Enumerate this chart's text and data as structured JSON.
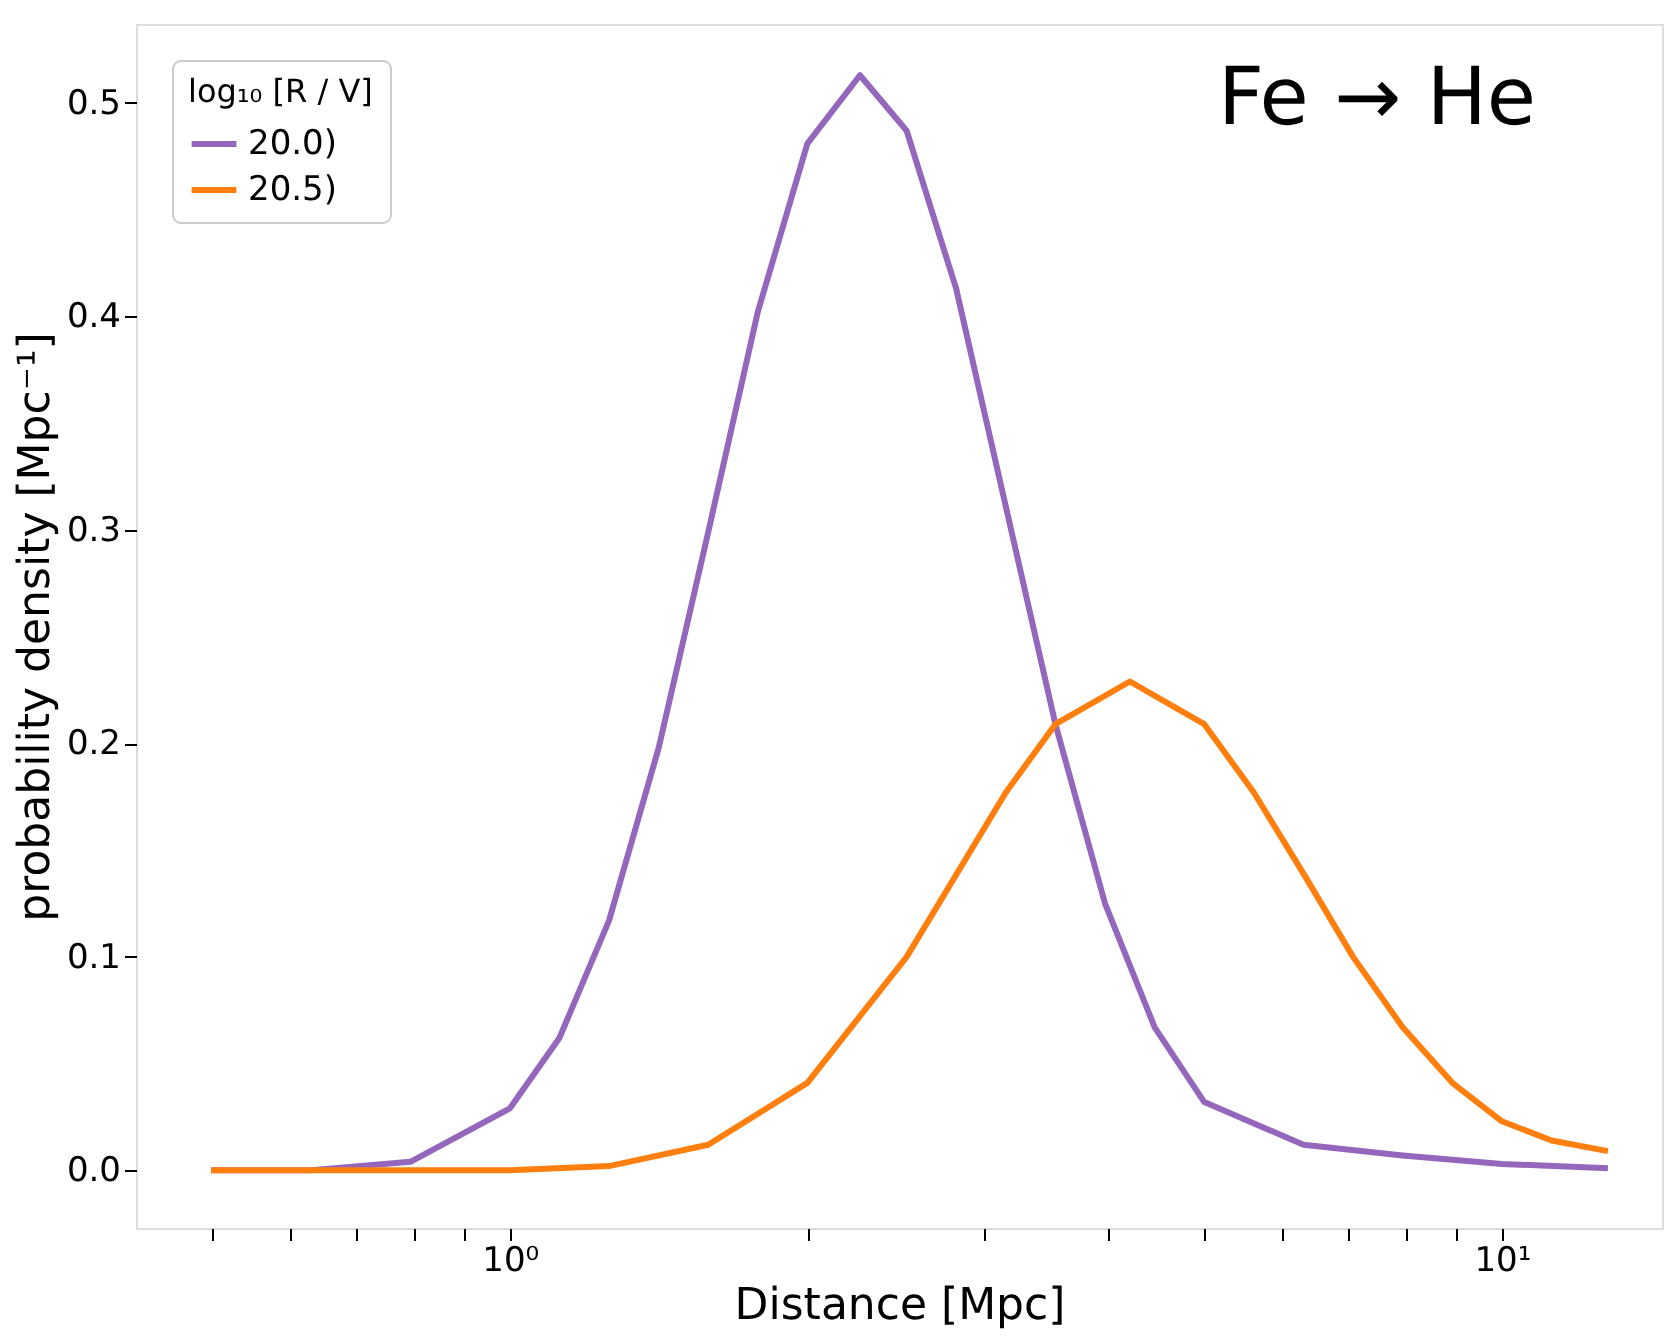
{
  "chart_data": {
    "type": "line",
    "xlabel": "Distance [Mpc]",
    "ylabel": "probability density [Mpc⁻¹]",
    "legend_title": "log₁₀ [R / V]",
    "legend": "top left",
    "grid": false,
    "log": "x",
    "line_style": "solid",
    "marker": "none",
    "annotations": [
      "Fe → He"
    ],
    "xlim": [
      0.42,
      14.5
    ],
    "ylim": [
      -0.027,
      0.537
    ],
    "xticks": [
      {
        "value": 0.5,
        "label": null
      },
      {
        "value": 0.6,
        "label": null
      },
      {
        "value": 0.7,
        "label": null
      },
      {
        "value": 0.8,
        "label": null
      },
      {
        "value": 0.9,
        "label": null
      },
      {
        "value": 1,
        "label": "10⁰"
      },
      {
        "value": 2,
        "label": null
      },
      {
        "value": 3,
        "label": null
      },
      {
        "value": 4,
        "label": null
      },
      {
        "value": 5,
        "label": null
      },
      {
        "value": 6,
        "label": null
      },
      {
        "value": 7,
        "label": null
      },
      {
        "value": 8,
        "label": null
      },
      {
        "value": 9,
        "label": null
      },
      {
        "value": 10,
        "label": "10¹"
      }
    ],
    "yticks": [
      {
        "value": 0,
        "label": "0.0"
      },
      {
        "value": 0.1,
        "label": "0.1"
      },
      {
        "value": 0.2,
        "label": "0.2"
      },
      {
        "value": 0.3,
        "label": "0.3"
      },
      {
        "value": 0.4,
        "label": "0.4"
      },
      {
        "value": 0.5,
        "label": "0.5"
      }
    ],
    "series": [
      {
        "name": "20.0)",
        "color": "#9467bd",
        "x": [
          0.5,
          0.631,
          0.794,
          1,
          1.122,
          1.259,
          1.413,
          1.585,
          1.778,
          1.995,
          2.254,
          2.512,
          2.818,
          3.162,
          3.548,
          3.981,
          4.467,
          5.012,
          6.31,
          7.943,
          10,
          12.79
        ],
        "values": [
          0.0,
          0.0,
          0.004,
          0.029,
          0.062,
          0.117,
          0.198,
          0.299,
          0.402,
          0.481,
          0.513,
          0.487,
          0.413,
          0.311,
          0.209,
          0.125,
          0.067,
          0.032,
          0.012,
          0.007,
          0.003,
          0.001
        ]
      },
      {
        "name": "20.5)",
        "color": "#ff7f0e",
        "x": [
          0.5,
          1,
          1.259,
          1.585,
          1.995,
          2.512,
          3.162,
          3.548,
          4.217,
          5.012,
          5.623,
          6.31,
          7.079,
          7.943,
          8.913,
          10,
          11.22,
          12.79
        ],
        "values": [
          0.0,
          0.0,
          0.002,
          0.012,
          0.041,
          0.1,
          0.177,
          0.209,
          0.229,
          0.209,
          0.177,
          0.139,
          0.1,
          0.067,
          0.041,
          0.023,
          0.014,
          0.009
        ]
      }
    ]
  }
}
